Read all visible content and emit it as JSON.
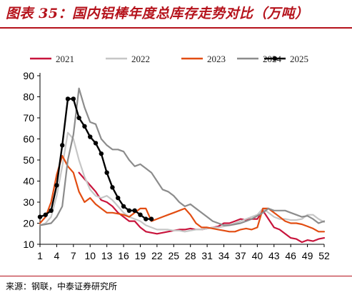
{
  "header": {
    "title": "图表 35：国内铝棒年度总库存走势对比（万吨）"
  },
  "footer": {
    "source": "来源：钢联，中泰证券研究所"
  },
  "chart_data": {
    "type": "line",
    "title": "",
    "xlabel": "",
    "ylabel": "",
    "xlim": [
      1,
      52
    ],
    "ylim": [
      10,
      90
    ],
    "y_ticks": [
      10,
      20,
      30,
      40,
      50,
      60,
      70,
      80,
      90
    ],
    "x_ticks": [
      1,
      4,
      7,
      10,
      13,
      16,
      19,
      22,
      25,
      28,
      31,
      34,
      37,
      40,
      43,
      46,
      49,
      52
    ],
    "legend_position": "top",
    "grid": false,
    "series": [
      {
        "name": "2021",
        "color": "#c8143c",
        "markers": false,
        "points": [
          [
            8,
            44
          ],
          [
            9,
            41
          ],
          [
            10,
            38
          ],
          [
            11,
            35
          ],
          [
            12,
            31
          ],
          [
            13,
            30
          ],
          [
            14,
            28
          ],
          [
            15,
            25
          ],
          [
            16,
            23
          ],
          [
            17,
            21
          ],
          [
            18,
            21
          ],
          [
            19,
            18
          ],
          [
            20,
            16
          ],
          [
            21,
            15.5
          ],
          [
            22,
            15
          ],
          [
            23,
            15.5
          ],
          [
            24,
            16
          ],
          [
            25,
            16.5
          ],
          [
            26,
            17
          ],
          [
            27,
            17
          ],
          [
            28,
            17.5
          ],
          [
            29,
            17
          ],
          [
            30,
            17
          ],
          [
            31,
            17.5
          ],
          [
            32,
            18
          ],
          [
            33,
            18.5
          ],
          [
            34,
            20
          ],
          [
            35,
            20
          ],
          [
            36,
            21
          ],
          [
            37,
            22
          ],
          [
            38,
            21.5
          ],
          [
            39,
            22
          ],
          [
            40,
            22
          ],
          [
            41,
            26
          ],
          [
            42,
            22
          ],
          [
            43,
            18
          ],
          [
            44,
            17
          ],
          [
            45,
            15
          ],
          [
            46,
            13
          ],
          [
            47,
            12.5
          ],
          [
            48,
            11
          ],
          [
            49,
            12
          ],
          [
            50,
            11.5
          ],
          [
            51,
            12.5
          ],
          [
            52,
            13
          ]
        ]
      },
      {
        "name": "2022",
        "color": "#c6c6c6",
        "markers": false,
        "points": [
          [
            1,
            19
          ],
          [
            2,
            20
          ],
          [
            3,
            23
          ],
          [
            4,
            33
          ],
          [
            5,
            47
          ],
          [
            6,
            63
          ],
          [
            7,
            60
          ],
          [
            8,
            50
          ],
          [
            9,
            42
          ],
          [
            10,
            36
          ],
          [
            11,
            33
          ],
          [
            12,
            32
          ],
          [
            13,
            33
          ],
          [
            14,
            31
          ],
          [
            15,
            28
          ],
          [
            16,
            25
          ],
          [
            17,
            23
          ],
          [
            18,
            22
          ],
          [
            19,
            21
          ],
          [
            20,
            19
          ],
          [
            21,
            18
          ],
          [
            22,
            17
          ],
          [
            23,
            17
          ],
          [
            24,
            17
          ],
          [
            25,
            16.5
          ],
          [
            26,
            16.5
          ],
          [
            27,
            16
          ],
          [
            28,
            16.5
          ],
          [
            29,
            17
          ],
          [
            30,
            17
          ],
          [
            31,
            17.5
          ],
          [
            32,
            18
          ],
          [
            33,
            18
          ],
          [
            34,
            18.5
          ],
          [
            35,
            19
          ],
          [
            36,
            20
          ],
          [
            37,
            21
          ],
          [
            38,
            22
          ],
          [
            39,
            23
          ],
          [
            40,
            24
          ],
          [
            41,
            27
          ],
          [
            42,
            25
          ],
          [
            43,
            23
          ],
          [
            44,
            22
          ],
          [
            45,
            22
          ],
          [
            46,
            21.5
          ],
          [
            47,
            21.5
          ],
          [
            48,
            22
          ],
          [
            49,
            24
          ],
          [
            50,
            24
          ],
          [
            51,
            22
          ],
          [
            52,
            20.5
          ]
        ]
      },
      {
        "name": "2023",
        "color": "#e24d12",
        "markers": false,
        "points": [
          [
            1,
            20
          ],
          [
            2,
            23
          ],
          [
            3,
            30
          ],
          [
            4,
            43
          ],
          [
            5,
            52
          ],
          [
            6,
            47
          ],
          [
            7,
            44
          ],
          [
            8,
            35
          ],
          [
            9,
            30
          ],
          [
            10,
            32
          ],
          [
            11,
            29
          ],
          [
            12,
            27
          ],
          [
            13,
            25
          ],
          [
            14,
            25
          ],
          [
            15,
            24.5
          ],
          [
            16,
            24
          ],
          [
            17,
            23
          ],
          [
            18,
            25
          ],
          [
            19,
            27
          ],
          [
            20,
            27
          ],
          [
            21,
            21
          ],
          [
            22,
            22
          ],
          [
            23,
            23
          ],
          [
            24,
            24
          ],
          [
            25,
            25
          ],
          [
            26,
            26
          ],
          [
            27,
            27
          ],
          [
            28,
            24
          ],
          [
            29,
            20
          ],
          [
            30,
            18
          ],
          [
            31,
            18
          ],
          [
            32,
            17.5
          ],
          [
            33,
            17
          ],
          [
            34,
            16.5
          ],
          [
            35,
            16
          ],
          [
            36,
            16
          ],
          [
            37,
            17
          ],
          [
            38,
            17.5
          ],
          [
            39,
            17
          ],
          [
            40,
            18
          ],
          [
            41,
            27
          ],
          [
            42,
            27
          ],
          [
            43,
            25
          ],
          [
            44,
            23
          ],
          [
            45,
            21
          ],
          [
            46,
            20
          ],
          [
            47,
            20
          ],
          [
            48,
            19.5
          ],
          [
            49,
            18.5
          ],
          [
            50,
            17.5
          ],
          [
            51,
            16
          ],
          [
            52,
            16
          ]
        ]
      },
      {
        "name": "2024",
        "color": "#8c8c8c",
        "markers": false,
        "points": [
          [
            1,
            19
          ],
          [
            2,
            19.5
          ],
          [
            3,
            20
          ],
          [
            4,
            23
          ],
          [
            5,
            28
          ],
          [
            6,
            50
          ],
          [
            7,
            62
          ],
          [
            8,
            84
          ],
          [
            9,
            75
          ],
          [
            10,
            68
          ],
          [
            11,
            67
          ],
          [
            12,
            60
          ],
          [
            13,
            57
          ],
          [
            14,
            55
          ],
          [
            15,
            55
          ],
          [
            16,
            54
          ],
          [
            17,
            50
          ],
          [
            18,
            47
          ],
          [
            19,
            48
          ],
          [
            20,
            46
          ],
          [
            21,
            44
          ],
          [
            22,
            40
          ],
          [
            23,
            36
          ],
          [
            24,
            35
          ],
          [
            25,
            33
          ],
          [
            26,
            30
          ],
          [
            27,
            28
          ],
          [
            28,
            29
          ],
          [
            29,
            27
          ],
          [
            30,
            25
          ],
          [
            31,
            23
          ],
          [
            32,
            21
          ],
          [
            33,
            20
          ],
          [
            34,
            19
          ],
          [
            35,
            19
          ],
          [
            36,
            19.5
          ],
          [
            37,
            20
          ],
          [
            38,
            21
          ],
          [
            39,
            22
          ],
          [
            40,
            23.5
          ],
          [
            41,
            25
          ],
          [
            42,
            27
          ],
          [
            43,
            26
          ],
          [
            44,
            26
          ],
          [
            45,
            26
          ],
          [
            46,
            25
          ],
          [
            47,
            24
          ],
          [
            48,
            23
          ],
          [
            49,
            23.5
          ],
          [
            50,
            22
          ],
          [
            51,
            20
          ],
          [
            52,
            21
          ]
        ]
      },
      {
        "name": "2025",
        "color": "#000000",
        "markers": true,
        "points": [
          [
            1,
            23
          ],
          [
            2,
            24
          ],
          [
            3,
            26
          ],
          [
            4,
            38
          ],
          [
            5,
            57
          ],
          [
            6,
            79
          ],
          [
            7,
            79
          ],
          [
            8,
            70
          ],
          [
            9,
            66
          ],
          [
            10,
            61
          ],
          [
            11,
            58
          ],
          [
            12,
            53
          ],
          [
            13,
            44
          ],
          [
            14,
            37
          ],
          [
            15,
            32
          ],
          [
            16,
            28
          ],
          [
            17,
            26
          ],
          [
            18,
            26
          ],
          [
            19,
            24
          ],
          [
            20,
            22
          ],
          [
            21,
            22
          ]
        ]
      }
    ]
  }
}
